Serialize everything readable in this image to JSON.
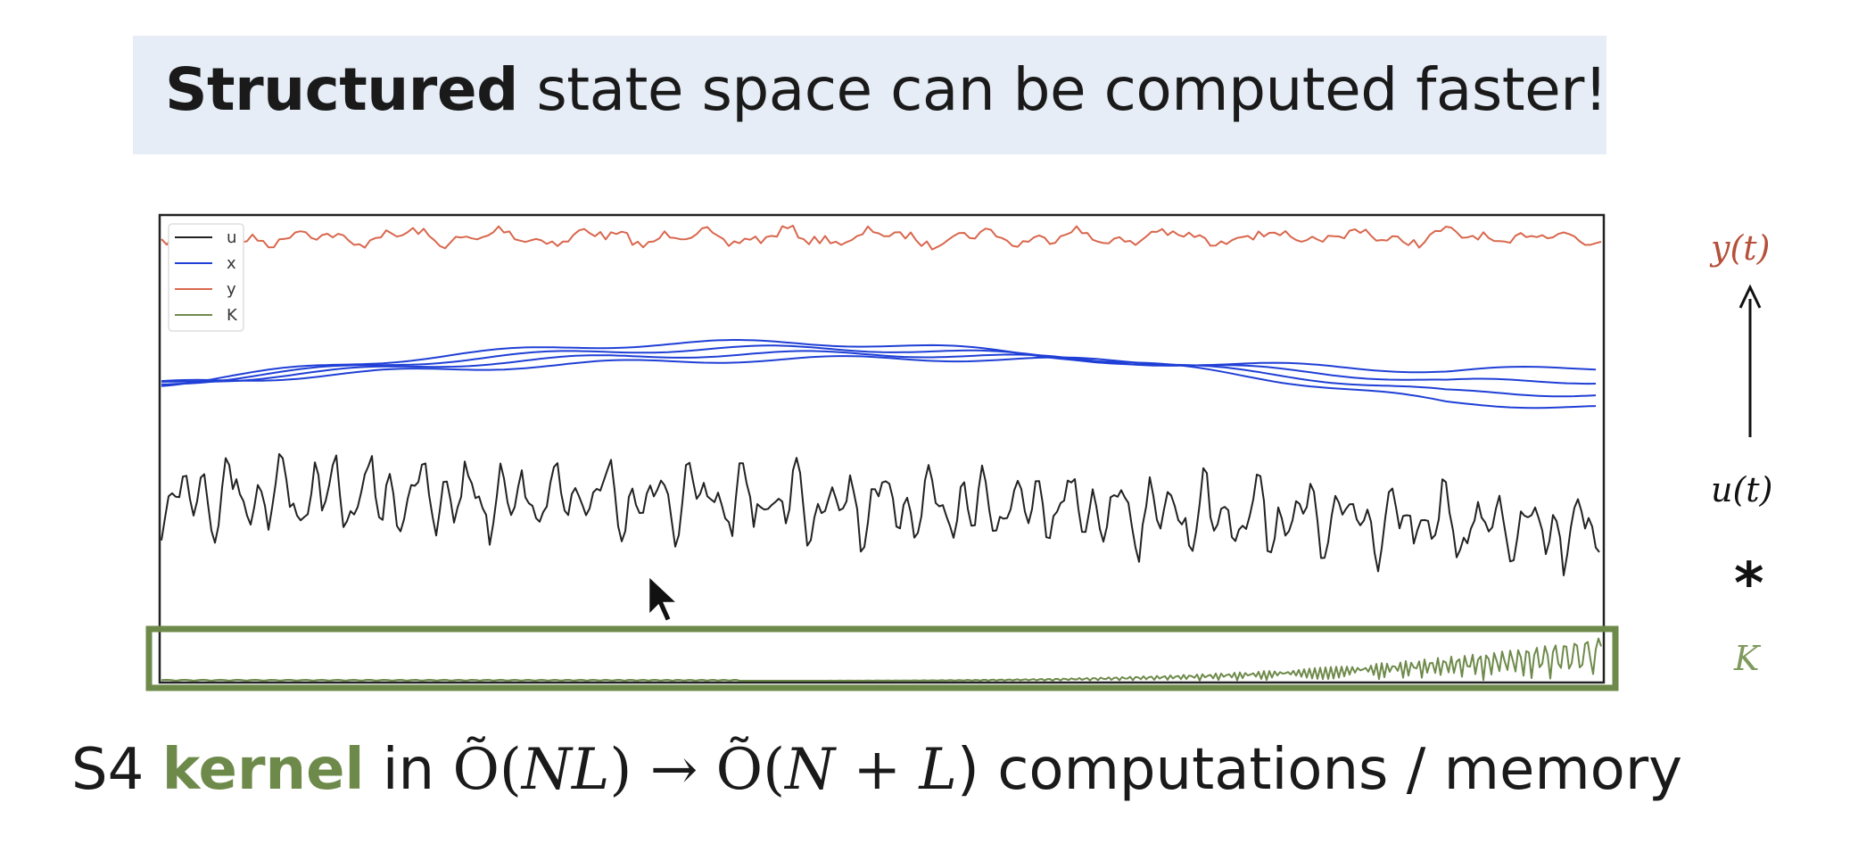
{
  "title": {
    "bold": "Structured",
    "rest": " state space can be computed faster!"
  },
  "legend": [
    "u",
    "x",
    "y",
    "K"
  ],
  "labels": {
    "y": "y(t)",
    "u": "u(t)",
    "conv": "*",
    "k": "K"
  },
  "bottom": {
    "prefix": "S4 ",
    "keyword": "kernel",
    "mid": " in ",
    "before": "Õ(",
    "before_vars": "NL",
    "after": ")  →  Õ(",
    "after_vars": "N + L",
    "suffix": ") computations / memory"
  },
  "colors": {
    "u": "#222222",
    "x": "#1f3fd6",
    "y": "#d9674d",
    "k": "#6e8a4a",
    "highlight": "#6e8a4a"
  }
}
